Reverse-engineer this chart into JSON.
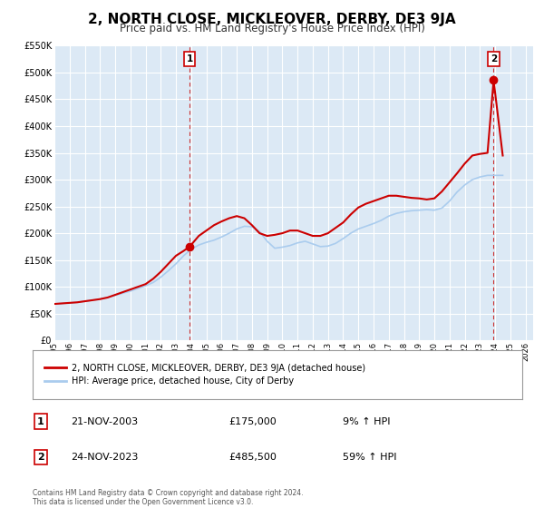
{
  "title": "2, NORTH CLOSE, MICKLEOVER, DERBY, DE3 9JA",
  "subtitle": "Price paid vs. HM Land Registry's House Price Index (HPI)",
  "title_fontsize": 11,
  "subtitle_fontsize": 8.5,
  "ylim": [
    0,
    550000
  ],
  "yticks": [
    0,
    50000,
    100000,
    150000,
    200000,
    250000,
    300000,
    350000,
    400000,
    450000,
    500000,
    550000
  ],
  "xlim_start": 1995.0,
  "xlim_end": 2026.5,
  "xtick_years": [
    1995,
    1996,
    1997,
    1998,
    1999,
    2000,
    2001,
    2002,
    2003,
    2004,
    2005,
    2006,
    2007,
    2008,
    2009,
    2010,
    2011,
    2012,
    2013,
    2014,
    2015,
    2016,
    2017,
    2018,
    2019,
    2020,
    2021,
    2022,
    2023,
    2024,
    2025,
    2026
  ],
  "background_color": "#dce9f5",
  "line1_color": "#cc0000",
  "line2_color": "#aaccee",
  "vline_color": "#cc3333",
  "annotation_box_color": "#cc0000",
  "sale1_x": 2003.9,
  "sale1_y": 175000,
  "sale2_x": 2023.9,
  "sale2_y": 485500,
  "legend_line1": "2, NORTH CLOSE, MICKLEOVER, DERBY, DE3 9JA (detached house)",
  "legend_line2": "HPI: Average price, detached house, City of Derby",
  "table_row1_num": "1",
  "table_row1_date": "21-NOV-2003",
  "table_row1_price": "£175,000",
  "table_row1_hpi": "9% ↑ HPI",
  "table_row2_num": "2",
  "table_row2_date": "24-NOV-2023",
  "table_row2_price": "£485,500",
  "table_row2_hpi": "59% ↑ HPI",
  "footer_text": "Contains HM Land Registry data © Crown copyright and database right 2024.\nThis data is licensed under the Open Government Licence v3.0.",
  "hpi_data_x": [
    1995.0,
    1995.5,
    1996.0,
    1996.5,
    1997.0,
    1997.5,
    1998.0,
    1998.5,
    1999.0,
    1999.5,
    2000.0,
    2000.5,
    2001.0,
    2001.5,
    2002.0,
    2002.5,
    2003.0,
    2003.5,
    2004.0,
    2004.5,
    2005.0,
    2005.5,
    2006.0,
    2006.5,
    2007.0,
    2007.5,
    2008.0,
    2008.5,
    2009.0,
    2009.5,
    2010.0,
    2010.5,
    2011.0,
    2011.5,
    2012.0,
    2012.5,
    2013.0,
    2013.5,
    2014.0,
    2014.5,
    2015.0,
    2015.5,
    2016.0,
    2016.5,
    2017.0,
    2017.5,
    2018.0,
    2018.5,
    2019.0,
    2019.5,
    2020.0,
    2020.5,
    2021.0,
    2021.5,
    2022.0,
    2022.5,
    2023.0,
    2023.5,
    2024.0,
    2024.5
  ],
  "hpi_data_y": [
    68000,
    69000,
    70000,
    71000,
    73000,
    75000,
    77000,
    80000,
    84000,
    88000,
    92000,
    97000,
    102000,
    108000,
    118000,
    130000,
    143000,
    158000,
    170000,
    178000,
    183000,
    187000,
    193000,
    200000,
    208000,
    213000,
    212000,
    203000,
    185000,
    172000,
    174000,
    177000,
    182000,
    185000,
    180000,
    175000,
    176000,
    181000,
    190000,
    200000,
    208000,
    213000,
    218000,
    224000,
    232000,
    237000,
    240000,
    242000,
    243000,
    244000,
    243000,
    247000,
    260000,
    277000,
    290000,
    300000,
    305000,
    308000,
    308000,
    308000
  ],
  "price_data_x": [
    1995.0,
    1995.5,
    1996.0,
    1996.5,
    1997.0,
    1997.5,
    1998.0,
    1998.5,
    1999.0,
    1999.5,
    2000.0,
    2000.5,
    2001.0,
    2001.5,
    2002.0,
    2002.5,
    2003.0,
    2003.5,
    2003.9,
    2004.5,
    2005.0,
    2005.5,
    2006.0,
    2006.5,
    2007.0,
    2007.5,
    2008.0,
    2008.5,
    2009.0,
    2009.5,
    2010.0,
    2010.5,
    2011.0,
    2011.5,
    2012.0,
    2012.5,
    2013.0,
    2013.5,
    2014.0,
    2014.5,
    2015.0,
    2015.5,
    2016.0,
    2016.5,
    2017.0,
    2017.5,
    2018.0,
    2018.5,
    2019.0,
    2019.5,
    2020.0,
    2020.5,
    2021.0,
    2021.5,
    2022.0,
    2022.5,
    2023.0,
    2023.5,
    2023.9,
    2024.5
  ],
  "price_data_y": [
    68000,
    69000,
    70000,
    71000,
    73000,
    75000,
    77000,
    80000,
    85000,
    90000,
    95000,
    100000,
    105000,
    115000,
    128000,
    143000,
    158000,
    167000,
    175000,
    195000,
    205000,
    215000,
    222000,
    228000,
    232000,
    228000,
    215000,
    200000,
    195000,
    197000,
    200000,
    205000,
    205000,
    200000,
    195000,
    195000,
    200000,
    210000,
    220000,
    235000,
    248000,
    255000,
    260000,
    265000,
    270000,
    270000,
    268000,
    266000,
    265000,
    263000,
    265000,
    278000,
    295000,
    312000,
    330000,
    345000,
    348000,
    350000,
    485500,
    345000
  ]
}
